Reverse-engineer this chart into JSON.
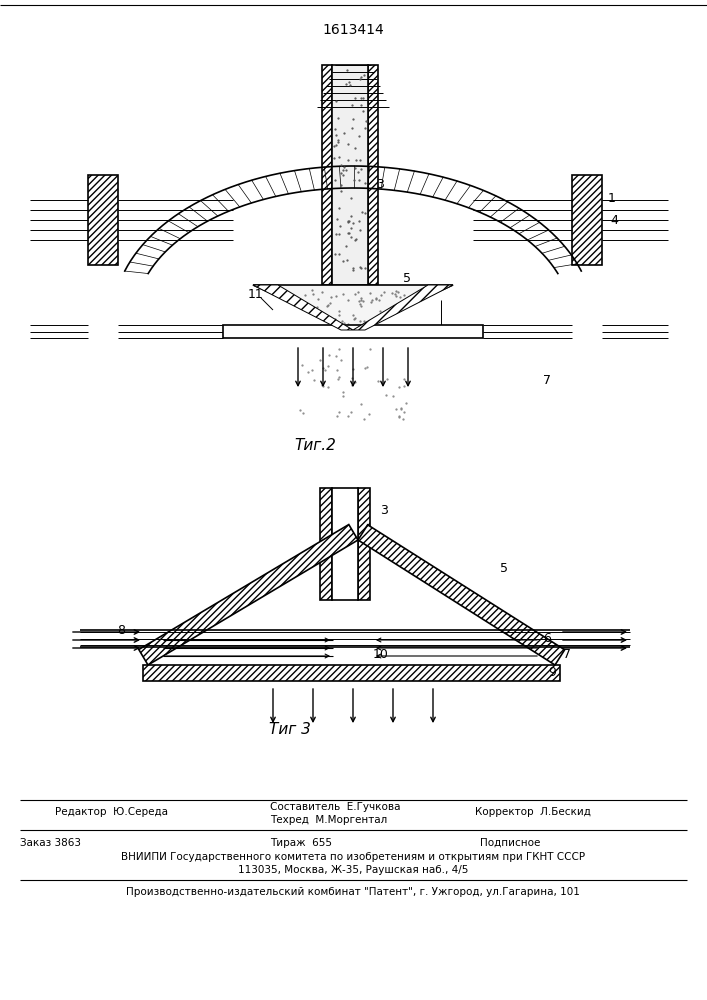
{
  "patent_number": "1613414",
  "fig2_label": "Τиг.2",
  "fig3_label": "Τиг 3",
  "editor_line": "Редактор  Ю.Середа",
  "compositor_line1": "Составитель  Е.Гучкова",
  "compositor_line2": "Техред  М.Моргентал",
  "corrector_line": "Корректор  Л.Бескид",
  "order_line": "Заказ 3863",
  "tirage_line": "Тираж  655",
  "podpisnoe_line": "Подписное",
  "vniiipi_line": "ВНИИПИ Государственного комитета по изобретениям и открытиям при ГКНТ СССР",
  "address_line": "113035, Москва, Ж-35, Раушская наб., 4/5",
  "factory_line": "Производственно-издательский комбинат \"Патент\", г. Ужгород, ул.Гагарина, 101",
  "bg_color": "#ffffff"
}
